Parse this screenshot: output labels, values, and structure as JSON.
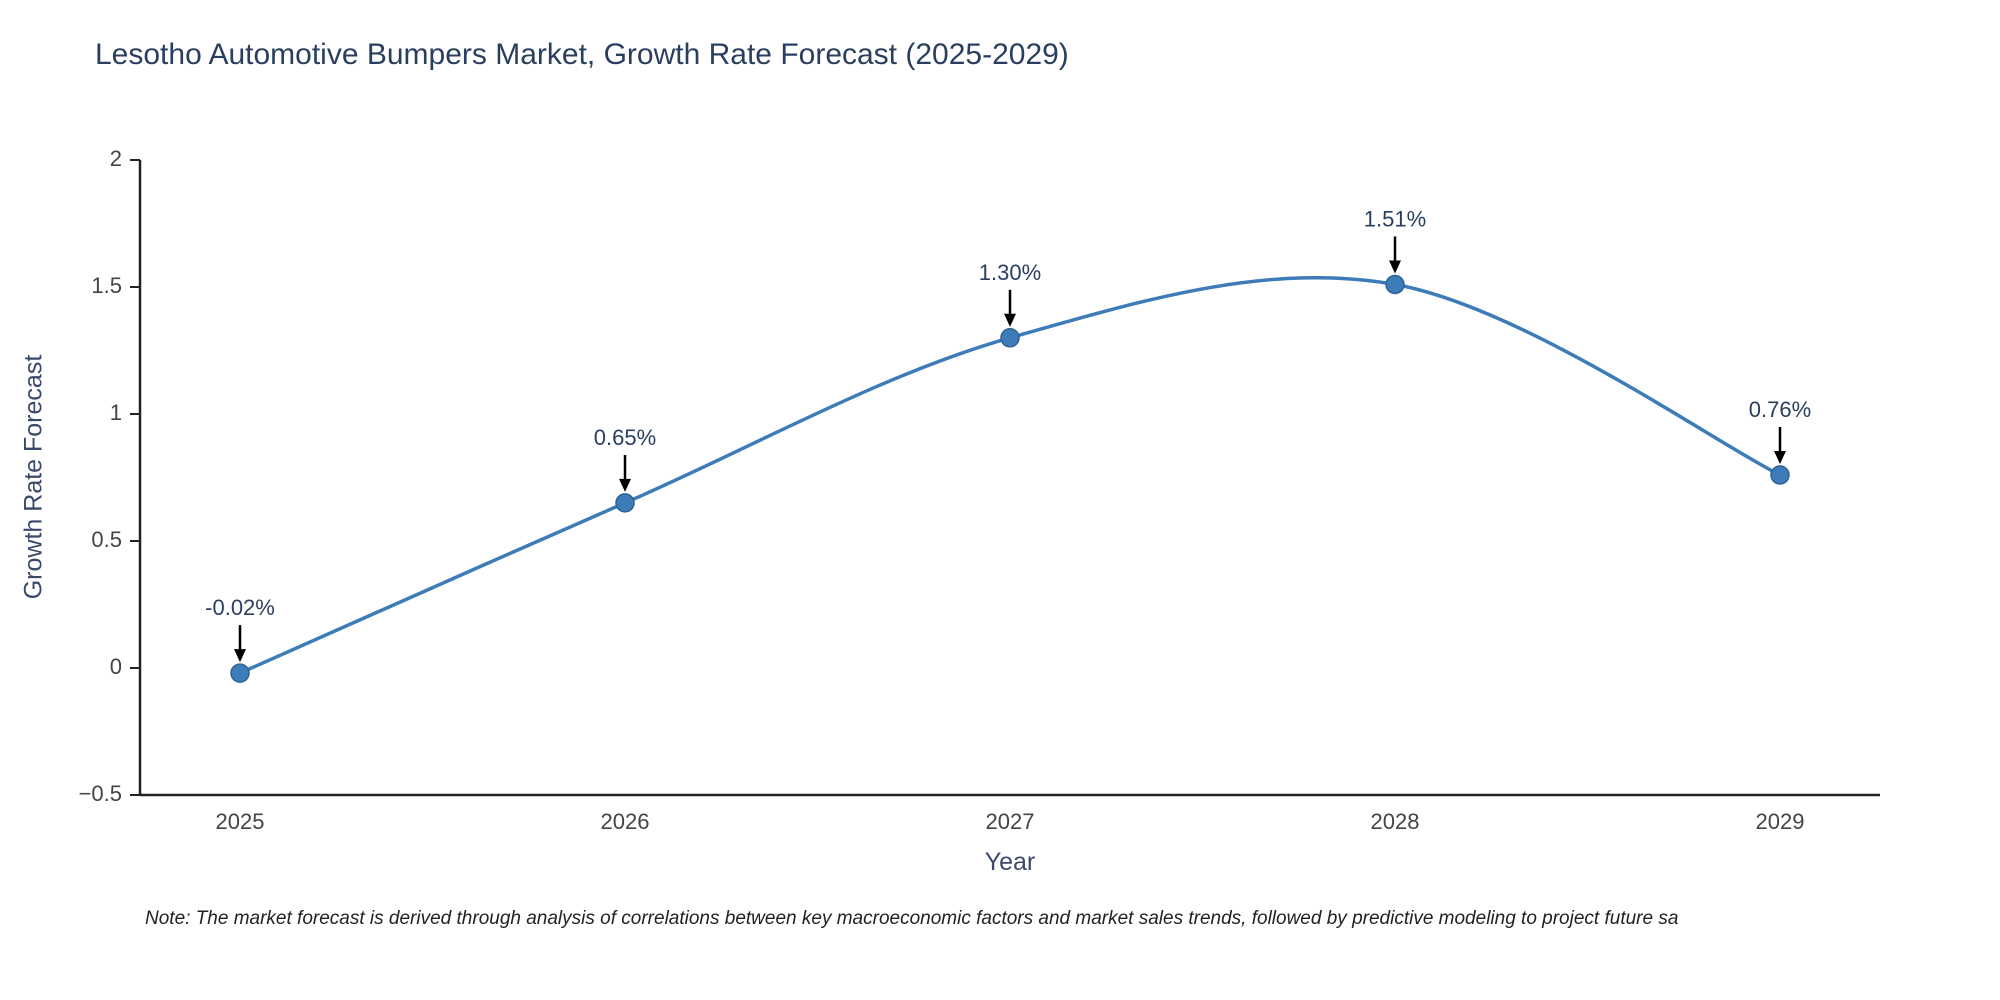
{
  "title": "Lesotho Automotive Bumpers Market, Growth Rate Forecast (2025-2029)",
  "note": "Note: The market forecast is derived through analysis of correlations between key macroeconomic factors and market sales trends, followed by predictive modeling to project future sa",
  "chart_data": {
    "type": "line",
    "title": "Lesotho Automotive Bumpers Market, Growth Rate Forecast (2025-2029)",
    "xlabel": "Year",
    "ylabel": "Growth Rate Forecast",
    "x": [
      "2025",
      "2026",
      "2027",
      "2028",
      "2029"
    ],
    "y": [
      -0.02,
      0.65,
      1.3,
      1.51,
      0.76
    ],
    "point_labels": [
      "-0.02%",
      "0.65%",
      "1.30%",
      "1.51%",
      "0.76%"
    ],
    "ylim": [
      -0.5,
      2
    ],
    "yticks": [
      -0.5,
      0,
      0.5,
      1,
      1.5,
      2
    ],
    "ytick_labels": [
      "−0.5",
      "0",
      "0.5",
      "1",
      "1.5",
      "2"
    ],
    "line_shape": "spline",
    "grid": false,
    "legend": "none",
    "line_color": "#3d7cb8",
    "marker_color": "#3d7cb8",
    "marker_edge_color": "#2e6293",
    "annotation_text_color": "#2a3f5f",
    "arrow_color": "#000000",
    "axis_color": "#222222",
    "tick_label_color": "#444444"
  }
}
